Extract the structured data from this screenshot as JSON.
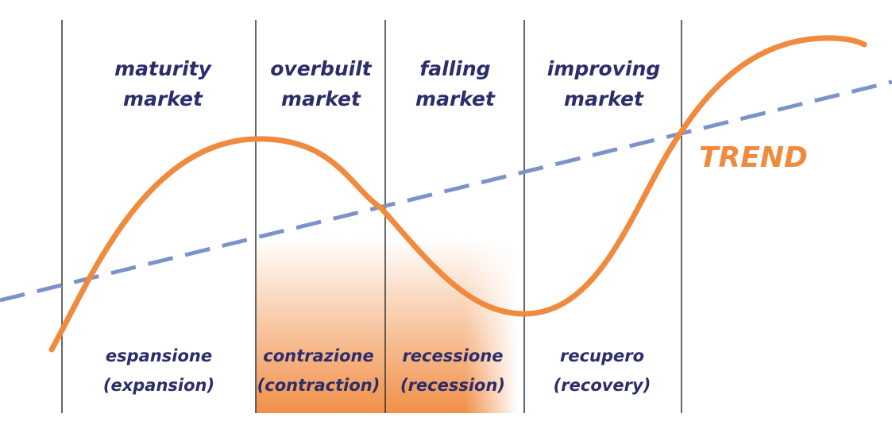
{
  "phases": [
    {
      "top": [
        "maturity",
        "market"
      ],
      "bottom": [
        "espansione",
        "(expansion)"
      ]
    },
    {
      "top": [
        "overbuilt",
        "market"
      ],
      "bottom": [
        "contrazione",
        "(contraction)"
      ]
    },
    {
      "top": [
        "falling",
        "market"
      ],
      "bottom": [
        "recessione",
        "(recession)"
      ]
    },
    {
      "top": [
        "improving",
        "market"
      ],
      "bottom": [
        "recupero",
        "(recovery)"
      ]
    }
  ],
  "trend_label": "TREND"
}
